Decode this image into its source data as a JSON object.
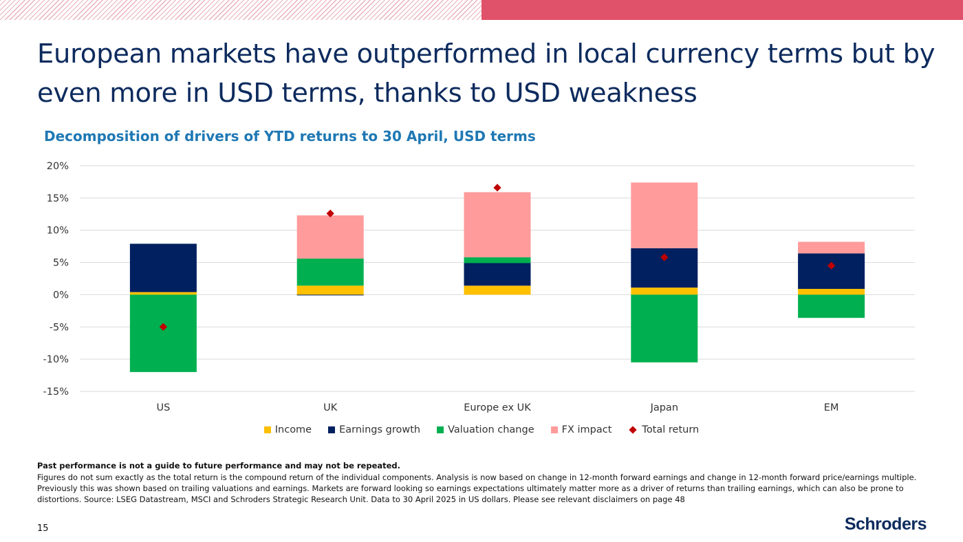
{
  "title": "European markets have outperformed in local currency terms but by even more in USD terms, thanks to USD weakness",
  "subtitle": "Decomposition of drivers of YTD returns to 30 April, USD terms",
  "colors": {
    "title": "#0d2b5e",
    "subtitle": "#1f78b4",
    "accent_bar": "#e0526a",
    "income": "#ffc000",
    "earnings_growth": "#002060",
    "valuation_change": "#00b050",
    "fx_impact": "#ff9b9b",
    "total_return": "#c00000"
  },
  "chart_data": {
    "type": "bar",
    "stacked": true,
    "categories": [
      "US",
      "UK",
      "Europe ex UK",
      "Japan",
      "EM"
    ],
    "series": [
      {
        "name": "Income",
        "color": "#ffc000",
        "values": [
          0.4,
          1.4,
          1.4,
          1.1,
          0.9
        ]
      },
      {
        "name": "Earnings growth",
        "color": "#002060",
        "values": [
          7.5,
          -0.1,
          3.5,
          6.1,
          5.5
        ]
      },
      {
        "name": "Valuation change",
        "color": "#00b050",
        "values": [
          -12.0,
          4.2,
          0.9,
          -10.5,
          -3.6
        ]
      },
      {
        "name": "FX impact",
        "color": "#ff9b9b",
        "values": [
          0,
          6.7,
          10.1,
          10.2,
          1.8
        ]
      }
    ],
    "total_return": {
      "name": "Total return",
      "color": "#c00000",
      "marker": "diamond",
      "values": [
        -5.0,
        12.6,
        16.6,
        5.8,
        4.5
      ]
    },
    "yticks": [
      "20%",
      "15%",
      "10%",
      "5%",
      "0%",
      "-5%",
      "-10%",
      "-15%"
    ],
    "ylim": [
      -15,
      20
    ],
    "grid": true,
    "legend": "bottom"
  },
  "legend_items": [
    {
      "name": "Income",
      "color": "#ffc000",
      "type": "square"
    },
    {
      "name": "Earnings growth",
      "color": "#002060",
      "type": "square"
    },
    {
      "name": "Valuation change",
      "color": "#00b050",
      "type": "square"
    },
    {
      "name": "FX impact",
      "color": "#ff9b9b",
      "type": "square"
    },
    {
      "name": "Total return",
      "color": "#c00000",
      "type": "diamond"
    }
  ],
  "footnote_bold": "Past performance is not a guide to future performance and may not be repeated.",
  "footnote": "Figures do not sum exactly as the total return is the compound return of the individual components. Analysis is now based on change in 12-month forward earnings and change in 12-month forward price/earnings multiple. Previously this was shown based on trailing valuations and earnings. Markets are forward looking so earnings expectations ultimately matter more as a driver of returns than trailing earnings, which can also be prone to distortions. Source: LSEG Datastream, MSCI and Schroders Strategic Research Unit. Data to 30 April 2025 in US dollars. Please see relevant disclaimers on page 48",
  "page_number": "15",
  "logo_text": "Schroders"
}
